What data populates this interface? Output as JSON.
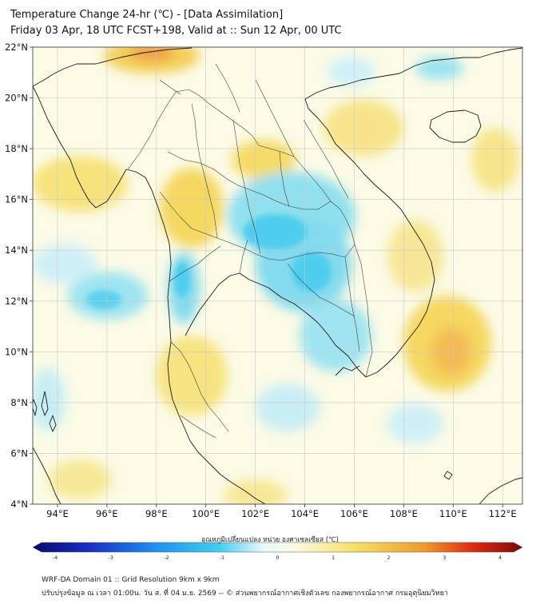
{
  "header": {
    "title_line1": "Temperature Change 24-hr (℃) - [Data Assimilation]",
    "title_line2": "Friday 03 Apr, 18 UTC FCST+198, Valid at :: Sun 12 Apr, 00 UTC"
  },
  "map": {
    "lat_labels": [
      "22°N",
      "20°N",
      "18°N",
      "16°N",
      "14°N",
      "12°N",
      "10°N",
      "8°N",
      "6°N",
      "4°N"
    ],
    "lon_labels": [
      "94°E",
      "96°E",
      "98°E",
      "100°E",
      "102°E",
      "104°E",
      "106°E",
      "108°E",
      "110°E",
      "112°E"
    ],
    "lat_range": [
      4,
      22
    ],
    "lon_range": [
      93,
      112.8
    ],
    "colors": {
      "background": "#fbfbe6",
      "warm": "#f2c93c",
      "hot": "#ef8a2a",
      "cool": "#55d0ee",
      "pale_cool": "#c8eefa",
      "coast": "#222222"
    }
  },
  "colorbar": {
    "label": "อุณหภูมิเปลี่ยนแปลง หน่วย องศาเซลเซียส (℃)",
    "ticks": [
      "-4",
      "-3",
      "-2",
      "-1",
      "0",
      "1",
      "2",
      "3",
      "4"
    ],
    "min": -4,
    "max": 4,
    "colors": [
      "#0a0a6e",
      "#1830c8",
      "#1f8ff2",
      "#3fd0f0",
      "#e8f8fb",
      "#fbfbe6",
      "#f6e064",
      "#f09a2a",
      "#e02810",
      "#7a0a0a"
    ]
  },
  "footer": {
    "line1": "WRF-DA Domain 01 :: Grid Resolution 9km x 9km",
    "line2": "ปรับปรุงข้อมูล ณ เวลา 01:00น. วัน ส. ที่ 04 ม.ย. 2569 -- © ส่วนพยากรณ์อากาศเชิงตัวเลข กองพยากรณ์อากาศ กรมอุตุนิยมวิทยา"
  }
}
